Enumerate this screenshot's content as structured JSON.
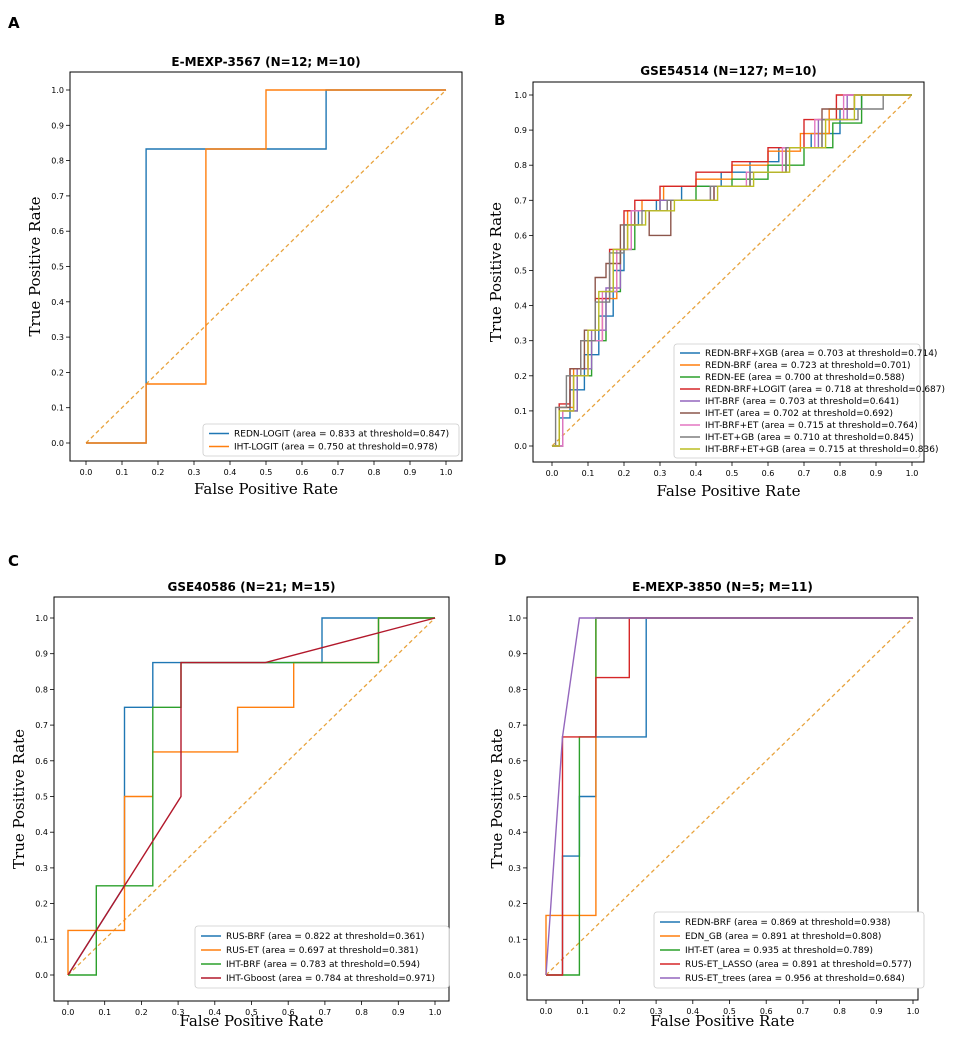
{
  "chart_data": [
    {
      "panel": "A",
      "type": "line",
      "title": "E-MEXP-3567 (N=12; M=10)",
      "xlabel": "False Positive Rate",
      "ylabel": "True Positive Rate",
      "xlim": [
        -0.05,
        1.05
      ],
      "ylim": [
        -0.05,
        1.05
      ],
      "xticks": [
        "0.0",
        "0.1",
        "0.2",
        "0.3",
        "0.4",
        "0.5",
        "0.6",
        "0.7",
        "0.8",
        "0.9",
        "1.0"
      ],
      "yticks": [
        "0.0",
        "0.1",
        "0.2",
        "0.3",
        "0.4",
        "0.5",
        "0.6",
        "0.7",
        "0.8",
        "0.9",
        "1.0"
      ],
      "legend_position": "lower-right",
      "diagonal_color": "#e8a33d",
      "series": [
        {
          "name": "REDN-LOGIT (area = 0.833 at threshold=0.847)",
          "color": "#1f77b4",
          "x": [
            0,
            0.167,
            0.167,
            0.167,
            0.667,
            0.667,
            1.0
          ],
          "y": [
            0,
            0,
            0.167,
            0.833,
            0.833,
            1.0,
            1.0
          ]
        },
        {
          "name": "IHT-LOGIT (area = 0.750 at threshold=0.978)",
          "color": "#ff7f0e",
          "x": [
            0,
            0.167,
            0.167,
            0.333,
            0.333,
            0.5,
            0.5,
            1.0
          ],
          "y": [
            0,
            0,
            0.167,
            0.167,
            0.833,
            0.833,
            1.0,
            1.0
          ]
        }
      ]
    },
    {
      "panel": "B",
      "type": "line",
      "title": "GSE54514 (N=127; M=10)",
      "xlabel": "False Positive Rate",
      "ylabel": "True Positive Rate",
      "xlim": [
        -0.05,
        1.05
      ],
      "ylim": [
        -0.05,
        1.05
      ],
      "xticks": [
        "0.0",
        "0.1",
        "0.2",
        "0.3",
        "0.4",
        "0.5",
        "0.6",
        "0.7",
        "0.8",
        "0.9",
        "1.0"
      ],
      "yticks": [
        "0.0",
        "0.1",
        "0.2",
        "0.3",
        "0.4",
        "0.5",
        "0.6",
        "0.7",
        "0.8",
        "0.9",
        "1.0"
      ],
      "legend_position": "lower-right",
      "diagonal_color": "#e8a33d",
      "series": [
        {
          "name": "REDN-BRF+XGB (area = 0.703 at threshold=0.714)",
          "color": "#1f77b4",
          "x": [
            0,
            0.02,
            0.02,
            0.05,
            0.05,
            0.09,
            0.09,
            0.13,
            0.13,
            0.17,
            0.17,
            0.2,
            0.2,
            0.24,
            0.24,
            0.29,
            0.29,
            0.36,
            0.36,
            0.47,
            0.47,
            0.55,
            0.55,
            0.63,
            0.63,
            0.72,
            0.72,
            0.8,
            0.8,
            0.86,
            0.86,
            1.0
          ],
          "y": [
            0,
            0,
            0.08,
            0.08,
            0.16,
            0.16,
            0.26,
            0.26,
            0.37,
            0.37,
            0.5,
            0.5,
            0.63,
            0.63,
            0.67,
            0.67,
            0.7,
            0.7,
            0.74,
            0.74,
            0.78,
            0.78,
            0.81,
            0.81,
            0.85,
            0.85,
            0.89,
            0.89,
            0.96,
            0.96,
            1.0,
            1.0
          ]
        },
        {
          "name": "REDN-BRF (area = 0.723 at threshold=0.701)",
          "color": "#ff7f0e",
          "x": [
            0,
            0.02,
            0.02,
            0.06,
            0.06,
            0.1,
            0.1,
            0.14,
            0.14,
            0.18,
            0.18,
            0.21,
            0.21,
            0.25,
            0.25,
            0.31,
            0.31,
            0.4,
            0.4,
            0.5,
            0.5,
            0.6,
            0.6,
            0.69,
            0.69,
            0.77,
            0.77,
            0.84,
            0.84,
            1.0
          ],
          "y": [
            0,
            0,
            0.11,
            0.11,
            0.22,
            0.22,
            0.3,
            0.3,
            0.42,
            0.42,
            0.56,
            0.56,
            0.67,
            0.67,
            0.7,
            0.7,
            0.74,
            0.74,
            0.76,
            0.76,
            0.8,
            0.8,
            0.84,
            0.84,
            0.89,
            0.89,
            0.96,
            0.96,
            1.0,
            1.0
          ]
        },
        {
          "name": "REDN-EE (area = 0.700 at threshold=0.588)",
          "color": "#2ca02c",
          "x": [
            0,
            0.03,
            0.03,
            0.07,
            0.07,
            0.11,
            0.11,
            0.15,
            0.15,
            0.19,
            0.19,
            0.23,
            0.23,
            0.3,
            0.3,
            0.4,
            0.4,
            0.5,
            0.5,
            0.6,
            0.6,
            0.7,
            0.7,
            0.78,
            0.78,
            0.86,
            0.86,
            1.0
          ],
          "y": [
            0,
            0,
            0.1,
            0.1,
            0.2,
            0.2,
            0.3,
            0.3,
            0.44,
            0.44,
            0.56,
            0.56,
            0.67,
            0.67,
            0.7,
            0.7,
            0.74,
            0.74,
            0.76,
            0.76,
            0.8,
            0.8,
            0.85,
            0.85,
            0.92,
            0.92,
            1.0,
            1.0
          ]
        },
        {
          "name": "REDN-BRF+LOGIT (area = 0.718 at threshold=0.687)",
          "color": "#d62728",
          "x": [
            0,
            0.02,
            0.02,
            0.05,
            0.05,
            0.08,
            0.08,
            0.12,
            0.12,
            0.16,
            0.16,
            0.2,
            0.2,
            0.23,
            0.23,
            0.3,
            0.3,
            0.4,
            0.4,
            0.5,
            0.5,
            0.6,
            0.6,
            0.7,
            0.7,
            0.79,
            0.79,
            0.85,
            0.85,
            1.0
          ],
          "y": [
            0,
            0,
            0.12,
            0.12,
            0.22,
            0.22,
            0.3,
            0.3,
            0.42,
            0.42,
            0.56,
            0.56,
            0.67,
            0.67,
            0.7,
            0.7,
            0.74,
            0.74,
            0.78,
            0.78,
            0.81,
            0.81,
            0.85,
            0.85,
            0.93,
            0.93,
            1.0,
            1.0,
            1.0,
            1.0
          ]
        },
        {
          "name": "IHT-BRF (area = 0.703 at threshold=0.641)",
          "color": "#9467bd",
          "x": [
            0,
            0.03,
            0.03,
            0.07,
            0.07,
            0.11,
            0.11,
            0.15,
            0.15,
            0.19,
            0.19,
            0.22,
            0.22,
            0.3,
            0.3,
            0.45,
            0.45,
            0.55,
            0.55,
            0.65,
            0.65,
            0.74,
            0.74,
            0.82,
            0.82,
            1.0
          ],
          "y": [
            0,
            0,
            0.1,
            0.1,
            0.22,
            0.22,
            0.33,
            0.33,
            0.45,
            0.45,
            0.56,
            0.56,
            0.67,
            0.67,
            0.7,
            0.7,
            0.74,
            0.74,
            0.78,
            0.78,
            0.85,
            0.85,
            0.93,
            0.93,
            1.0,
            1.0
          ]
        },
        {
          "name": "IHT-ET (area = 0.702 at threshold=0.692)",
          "color": "#8c564b",
          "x": [
            0,
            0.02,
            0.02,
            0.05,
            0.05,
            0.09,
            0.09,
            0.12,
            0.12,
            0.15,
            0.15,
            0.19,
            0.19,
            0.23,
            0.23,
            0.27,
            0.27,
            0.33,
            0.33,
            0.45,
            0.45,
            0.55,
            0.55,
            0.65,
            0.65,
            0.75,
            0.75,
            0.84,
            0.84,
            1.0
          ],
          "y": [
            0,
            0,
            0.11,
            0.11,
            0.22,
            0.22,
            0.33,
            0.33,
            0.48,
            0.48,
            0.52,
            0.52,
            0.63,
            0.63,
            0.67,
            0.67,
            0.6,
            0.6,
            0.7,
            0.7,
            0.74,
            0.74,
            0.78,
            0.78,
            0.85,
            0.85,
            0.96,
            0.96,
            1.0,
            1.0
          ]
        },
        {
          "name": "IHT-BRF+ET (area = 0.715 at threshold=0.764)",
          "color": "#e377c2",
          "x": [
            0,
            0.03,
            0.03,
            0.06,
            0.06,
            0.1,
            0.1,
            0.14,
            0.14,
            0.18,
            0.18,
            0.22,
            0.22,
            0.32,
            0.32,
            0.44,
            0.44,
            0.54,
            0.54,
            0.64,
            0.64,
            0.73,
            0.73,
            0.81,
            0.81,
            1.0
          ],
          "y": [
            0,
            0,
            0.1,
            0.1,
            0.2,
            0.2,
            0.3,
            0.3,
            0.44,
            0.44,
            0.56,
            0.56,
            0.67,
            0.67,
            0.7,
            0.7,
            0.74,
            0.74,
            0.78,
            0.78,
            0.85,
            0.85,
            0.93,
            0.93,
            1.0,
            1.0
          ]
        },
        {
          "name": "IHT-ET+GB (area = 0.710 at threshold=0.845)",
          "color": "#7f7f7f",
          "x": [
            0,
            0.01,
            0.01,
            0.04,
            0.04,
            0.08,
            0.08,
            0.12,
            0.12,
            0.16,
            0.16,
            0.2,
            0.2,
            0.25,
            0.25,
            0.32,
            0.32,
            0.44,
            0.44,
            0.55,
            0.55,
            0.65,
            0.65,
            0.75,
            0.75,
            0.85,
            0.85,
            0.92,
            0.92,
            1.0
          ],
          "y": [
            0,
            0,
            0.11,
            0.11,
            0.2,
            0.2,
            0.3,
            0.3,
            0.41,
            0.41,
            0.55,
            0.55,
            0.63,
            0.63,
            0.67,
            0.67,
            0.7,
            0.7,
            0.74,
            0.74,
            0.78,
            0.78,
            0.85,
            0.85,
            0.93,
            0.93,
            0.96,
            0.96,
            1.0,
            1.0
          ]
        },
        {
          "name": "IHT-BRF+ET+GB (area = 0.715 at threshold=0.836)",
          "color": "#bcbd22",
          "x": [
            0,
            0.02,
            0.02,
            0.06,
            0.06,
            0.1,
            0.1,
            0.13,
            0.13,
            0.17,
            0.17,
            0.21,
            0.21,
            0.26,
            0.26,
            0.34,
            0.34,
            0.46,
            0.46,
            0.56,
            0.56,
            0.66,
            0.66,
            0.76,
            0.76,
            0.84,
            0.84,
            1.0
          ],
          "y": [
            0,
            0,
            0.1,
            0.1,
            0.2,
            0.2,
            0.33,
            0.33,
            0.44,
            0.44,
            0.56,
            0.56,
            0.63,
            0.63,
            0.67,
            0.67,
            0.7,
            0.7,
            0.74,
            0.74,
            0.78,
            0.78,
            0.85,
            0.85,
            0.93,
            0.93,
            1.0,
            1.0
          ]
        }
      ]
    },
    {
      "panel": "C",
      "type": "line",
      "title": "GSE40586 (N=21; M=15)",
      "xlabel": "False Positive Rate",
      "ylabel": "True Positive Rate",
      "xlim": [
        -0.05,
        1.05
      ],
      "ylim": [
        -0.05,
        1.05
      ],
      "xticks": [
        "0.0",
        "0.1",
        "0.2",
        "0.3",
        "0.4",
        "0.5",
        "0.6",
        "0.7",
        "0.8",
        "0.9",
        "1.0"
      ],
      "yticks": [
        "0.0",
        "0.1",
        "0.2",
        "0.3",
        "0.4",
        "0.5",
        "0.6",
        "0.7",
        "0.8",
        "0.9",
        "1.0"
      ],
      "legend_position": "lower-right",
      "diagonal_color": "#e8a33d",
      "series": [
        {
          "name": "RUS-BRF (area = 0.822 at threshold=0.361)",
          "color": "#1f77b4",
          "x": [
            0,
            0.154,
            0.154,
            0.154,
            0.231,
            0.231,
            0.692,
            0.692,
            0.846,
            0.846,
            1.0
          ],
          "y": [
            0,
            0.25,
            0.5,
            0.75,
            0.75,
            0.875,
            0.875,
            1.0,
            1.0,
            1.0,
            1.0
          ]
        },
        {
          "name": "RUS-ET (area = 0.697 at threshold=0.381)",
          "color": "#ff7f0e",
          "x": [
            0,
            0.0,
            0.077,
            0.077,
            0.154,
            0.154,
            0.231,
            0.231,
            0.462,
            0.462,
            0.615,
            0.615,
            0.846,
            0.846,
            1.0
          ],
          "y": [
            0,
            0.125,
            0.125,
            0.125,
            0.125,
            0.5,
            0.5,
            0.625,
            0.625,
            0.75,
            0.75,
            0.875,
            0.875,
            1.0,
            1.0
          ]
        },
        {
          "name": "IHT-BRF (area = 0.783 at threshold=0.594)",
          "color": "#2ca02c",
          "x": [
            0,
            0.077,
            0.077,
            0.231,
            0.231,
            0.308,
            0.308,
            0.846,
            0.846,
            1.0
          ],
          "y": [
            0,
            0,
            0.25,
            0.25,
            0.75,
            0.75,
            0.875,
            0.875,
            1.0,
            1.0
          ]
        },
        {
          "name": "IHT-Gboost (area = 0.784 at threshold=0.971)",
          "color": "#b2182b",
          "x": [
            0,
            0.308,
            0.308,
            0.538,
            1.0
          ],
          "y": [
            0,
            0.5,
            0.875,
            0.875,
            1.0
          ]
        }
      ]
    },
    {
      "panel": "D",
      "type": "line",
      "title": "E-MEXP-3850 (N=5; M=11)",
      "xlabel": "False Positive Rate",
      "ylabel": "True Positive Rate",
      "xlim": [
        -0.05,
        1.05
      ],
      "ylim": [
        -0.05,
        1.05
      ],
      "xticks": [
        "0.0",
        "0.1",
        "0.2",
        "0.3",
        "0.4",
        "0.5",
        "0.6",
        "0.7",
        "0.8",
        "0.9",
        "1.0"
      ],
      "yticks": [
        "0.0",
        "0.1",
        "0.2",
        "0.3",
        "0.4",
        "0.5",
        "0.6",
        "0.7",
        "0.8",
        "0.9",
        "1.0"
      ],
      "legend_position": "lower-right",
      "diagonal_color": "#e8a33d",
      "series": [
        {
          "name": "REDN-BRF (area = 0.869 at threshold=0.938)",
          "color": "#1f77b4",
          "x": [
            0,
            0.045,
            0.045,
            0.091,
            0.091,
            0.136,
            0.136,
            0.273,
            0.273,
            1.0
          ],
          "y": [
            0,
            0,
            0.333,
            0.333,
            0.5,
            0.5,
            0.667,
            0.667,
            1.0,
            1.0
          ]
        },
        {
          "name": "EDN_GB (area = 0.891 at threshold=0.808)",
          "color": "#ff7f0e",
          "x": [
            0,
            0.0,
            0.136,
            0.136,
            0.136,
            1.0
          ],
          "y": [
            0,
            0.167,
            0.167,
            0.667,
            1.0,
            1.0
          ]
        },
        {
          "name": "IHT-ET (area = 0.935 at threshold=0.789)",
          "color": "#2ca02c",
          "x": [
            0,
            0.091,
            0.091,
            0.136,
            0.136,
            1.0
          ],
          "y": [
            0,
            0,
            0.667,
            0.667,
            1.0,
            1.0
          ]
        },
        {
          "name": "RUS-ET_LASSO (area = 0.891 at threshold=0.577)",
          "color": "#d62728",
          "x": [
            0,
            0.045,
            0.045,
            0.136,
            0.136,
            0.227,
            0.227,
            1.0
          ],
          "y": [
            0,
            0,
            0.667,
            0.667,
            0.833,
            0.833,
            1.0,
            1.0
          ]
        },
        {
          "name": "RUS-ET_trees (area = 0.956 at threshold=0.684)",
          "color": "#9467bd",
          "x": [
            0,
            0.045,
            0.091,
            1.0
          ],
          "y": [
            0,
            0.667,
            1.0,
            1.0
          ]
        }
      ]
    }
  ]
}
